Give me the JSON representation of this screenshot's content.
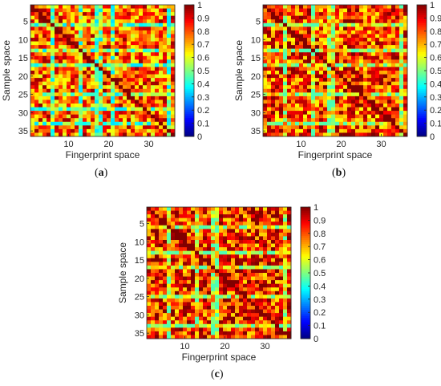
{
  "chart_data": [
    {
      "panel_label": "a",
      "type": "heatmap",
      "size": 36,
      "xlabel": "Fingerprint space",
      "ylabel": "Sample space",
      "xticks": [
        10,
        20,
        30
      ],
      "yticks": [
        5,
        10,
        15,
        20,
        25,
        30,
        35
      ],
      "colorbar_ticks": [
        0,
        0.1,
        0.2,
        0.3,
        0.4,
        0.5,
        0.6,
        0.7,
        0.8,
        0.9,
        1
      ],
      "clim": [
        0,
        1
      ],
      "colormap": "jet",
      "diagonal_value": 1,
      "value_range_estimate": [
        0.35,
        1.0
      ],
      "typical_value": 0.78,
      "seed": 11,
      "low_columns": [
        6,
        13,
        17,
        18,
        21,
        35
      ],
      "low_rows": [
        6,
        13,
        17,
        25,
        29,
        33
      ]
    },
    {
      "panel_label": "b",
      "type": "heatmap",
      "size": 36,
      "xlabel": "Fingerprint space",
      "ylabel": "Sample space",
      "xticks": [
        10,
        20,
        30
      ],
      "yticks": [
        5,
        10,
        15,
        20,
        25,
        30,
        35
      ],
      "colorbar_ticks": [
        0,
        0.1,
        0.2,
        0.3,
        0.4,
        0.5,
        0.6,
        0.7,
        0.8,
        0.9,
        1
      ],
      "clim": [
        0,
        1
      ],
      "colormap": "jet",
      "diagonal_value": 1,
      "value_range_estimate": [
        0.45,
        1.0
      ],
      "typical_value": 0.82,
      "seed": 23,
      "low_columns": [
        6,
        13,
        17,
        18,
        35
      ],
      "low_rows": [
        6,
        13,
        17,
        25,
        33
      ]
    },
    {
      "panel_label": "c",
      "type": "heatmap",
      "size": 36,
      "xlabel": "Fingerprint space",
      "ylabel": "Sample space",
      "xticks": [
        10,
        20,
        30
      ],
      "yticks": [
        5,
        10,
        15,
        20,
        25,
        30,
        35
      ],
      "colorbar_ticks": [
        0,
        0.1,
        0.2,
        0.3,
        0.4,
        0.5,
        0.6,
        0.7,
        0.8,
        0.9,
        1
      ],
      "clim": [
        0,
        1
      ],
      "colormap": "jet",
      "diagonal_value": 1,
      "value_range_estimate": [
        0.45,
        1.0
      ],
      "typical_value": 0.84,
      "seed": 37,
      "low_columns": [
        6,
        13,
        17,
        18,
        35
      ],
      "low_rows": [
        6,
        13,
        17,
        25,
        33
      ]
    }
  ],
  "captions": [
    "a",
    "b",
    "c"
  ]
}
